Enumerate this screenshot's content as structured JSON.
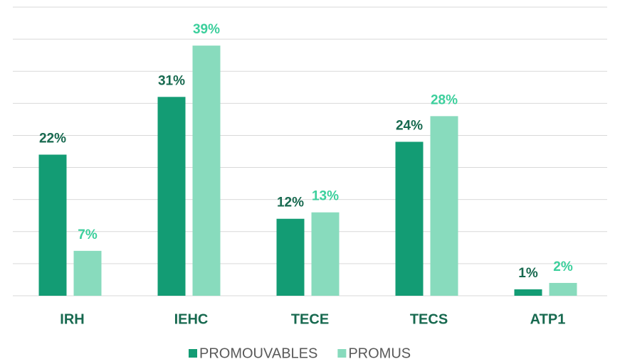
{
  "chart_data": {
    "type": "bar",
    "categories": [
      "IRH",
      "IEHC",
      "TECE",
      "TECS",
      "ATP1"
    ],
    "series": [
      {
        "name": "PROMOUVABLES",
        "color": "#139c74",
        "label_color": "#17694f",
        "values": [
          22,
          31,
          12,
          24,
          1
        ],
        "value_labels": [
          "22%",
          "31%",
          "12%",
          "24%",
          "1%"
        ]
      },
      {
        "name": "PROMUS",
        "color": "#88dbbd",
        "label_color": "#3ccf9c",
        "values": [
          7,
          39,
          13,
          28,
          2
        ],
        "value_labels": [
          "7%",
          "39%",
          "13%",
          "28%",
          "2%"
        ]
      }
    ],
    "ylim": [
      0,
      45
    ],
    "yticks": [
      0,
      5,
      10,
      15,
      20,
      25,
      30,
      35,
      40,
      45
    ],
    "grid": true,
    "legend": "bottom"
  }
}
